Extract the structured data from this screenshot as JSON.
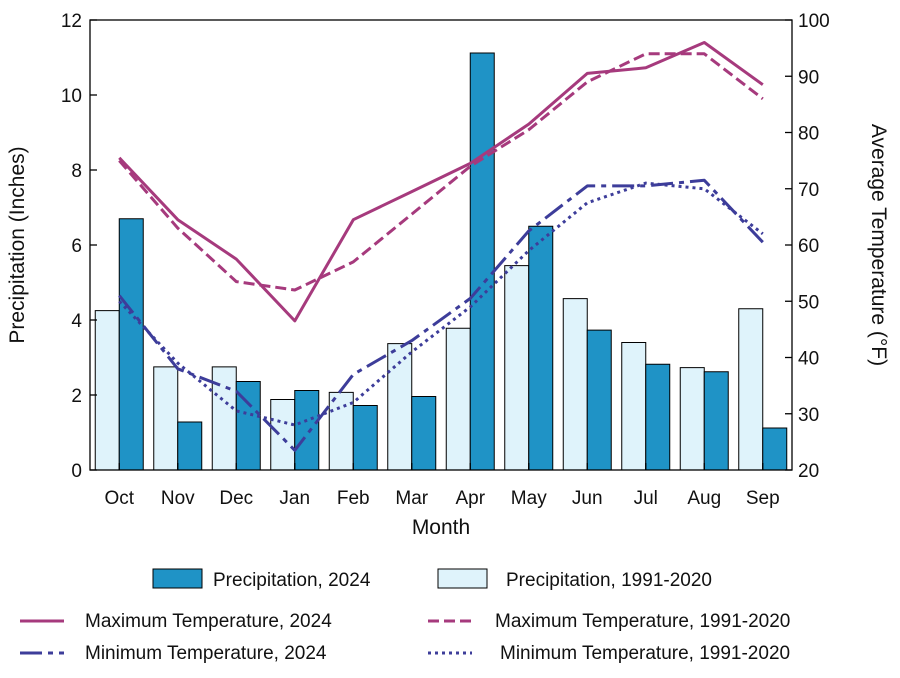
{
  "chart_data": {
    "type": "bar",
    "categories": [
      "Oct",
      "Nov",
      "Dec",
      "Jan",
      "Feb",
      "Mar",
      "Apr",
      "May",
      "Jun",
      "Jul",
      "Aug",
      "Sep"
    ],
    "xlabel": "Month",
    "ylabel_left": "Precipitation (Inches)",
    "ylabel_right": "Average Temperature (°F)",
    "ylim_left": [
      0,
      12
    ],
    "ylim_right": [
      20,
      100
    ],
    "yticks_left": [
      0,
      2,
      4,
      6,
      8,
      10,
      12
    ],
    "yticks_right": [
      20,
      30,
      40,
      50,
      60,
      70,
      80,
      90,
      100
    ],
    "grid": false,
    "legend_position": "bottom",
    "bar_series": [
      {
        "name": "Precipitation, 1991-2020",
        "color": "#dff3fb",
        "values": [
          4.25,
          2.75,
          2.75,
          1.88,
          2.07,
          3.37,
          3.78,
          5.45,
          4.57,
          3.4,
          2.73,
          4.3
        ]
      },
      {
        "name": "Precipitation, 2024",
        "color": "#1f93c6",
        "values": [
          6.7,
          1.28,
          2.36,
          2.12,
          1.72,
          1.96,
          11.12,
          6.5,
          3.73,
          2.82,
          2.62,
          1.12
        ]
      }
    ],
    "line_series": [
      {
        "name": "Maximum Temperature, 2024",
        "color": "#a63a7d",
        "style": "solid",
        "values": [
          75.5,
          64.5,
          57.5,
          46.5,
          64.5,
          69.5,
          74.5,
          81.5,
          90.5,
          91.5,
          96.0,
          88.5
        ]
      },
      {
        "name": "Maximum Temperature, 1991-2020",
        "color": "#a63a7d",
        "style": "dashed",
        "values": [
          75.0,
          63.0,
          53.5,
          52.0,
          57.0,
          65.5,
          74.0,
          80.5,
          89.0,
          94.0,
          94.0,
          86.0
        ]
      },
      {
        "name": "Minimum Temperature, 2024",
        "color": "#3d3d9a",
        "style": "dashdot",
        "values": [
          51.0,
          38.0,
          34.0,
          23.5,
          37.0,
          43.0,
          50.5,
          62.5,
          70.5,
          70.5,
          71.5,
          60.5
        ]
      },
      {
        "name": "Minimum Temperature, 1991-2020",
        "color": "#3d3d9a",
        "style": "dotted",
        "values": [
          50.0,
          39.0,
          30.5,
          28.0,
          32.0,
          41.0,
          49.0,
          59.0,
          67.5,
          71.0,
          70.0,
          62.0
        ]
      }
    ]
  }
}
